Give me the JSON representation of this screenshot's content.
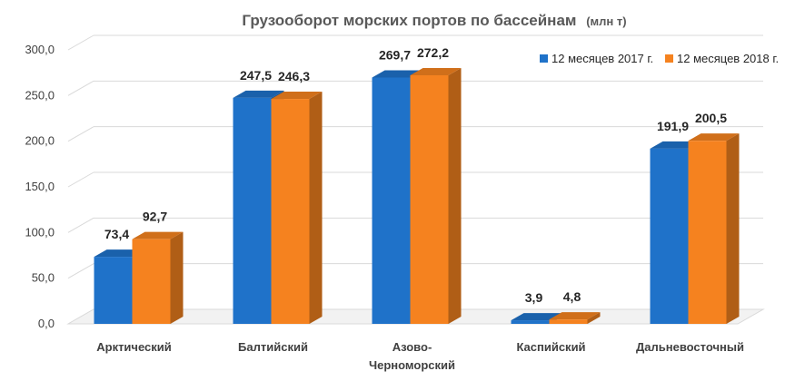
{
  "chart_data": {
    "type": "bar",
    "title": "Грузооборот  морских портов по бассейнам",
    "title_unit": "(млн т)",
    "categories": [
      "Арктический",
      "Балтийский",
      "Азово-Черноморский",
      "Каспийский",
      "Дальневосточный"
    ],
    "series": [
      {
        "name": "12 месяцев 2017 г.",
        "color": "#1f72c9",
        "values": [
          73.4,
          247.5,
          269.7,
          3.9,
          191.9
        ],
        "labels": [
          "73,4",
          "247,5",
          "269,7",
          "3,9",
          "191,9"
        ]
      },
      {
        "name": "12 месяцев 2018 г.",
        "color": "#f5821f",
        "values": [
          92.7,
          246.3,
          272.2,
          4.8,
          200.5
        ],
        "labels": [
          "92,7",
          "246,3",
          "272,2",
          "4,8",
          "200,5"
        ]
      }
    ],
    "y_ticks": [
      "0,0",
      "50,0",
      "100,0",
      "150,0",
      "200,0",
      "250,0",
      "300,0"
    ],
    "y_tick_values": [
      0,
      50,
      100,
      150,
      200,
      250,
      300
    ],
    "ylim": [
      0,
      300
    ],
    "grid": true,
    "legend_position": "top-right",
    "style": "3d-column"
  }
}
